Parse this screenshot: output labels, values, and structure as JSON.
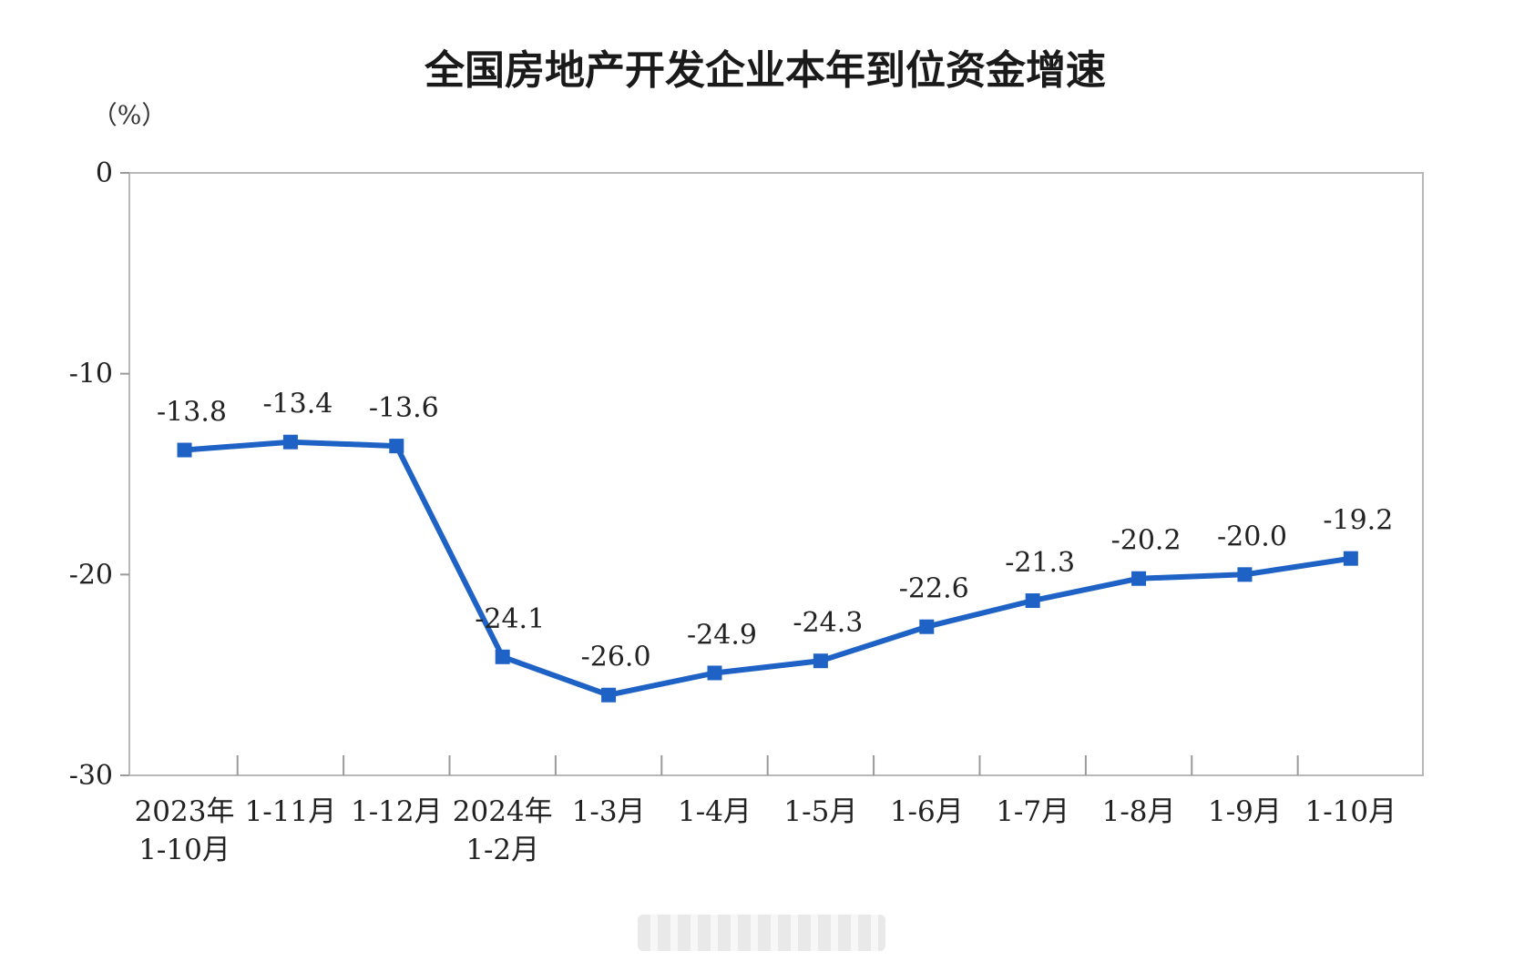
{
  "chart_data": {
    "type": "line",
    "title": "全国房地产开发企业本年到位资金增速",
    "unit": "（%）",
    "ylim": [
      -30,
      0
    ],
    "yticks": [
      0,
      -10,
      -20,
      -30
    ],
    "grid": false,
    "categories": [
      [
        "2023年",
        "1-10月"
      ],
      [
        "1-11月"
      ],
      [
        "1-12月"
      ],
      [
        "2024年",
        "1-2月"
      ],
      [
        "1-3月"
      ],
      [
        "1-4月"
      ],
      [
        "1-5月"
      ],
      [
        "1-6月"
      ],
      [
        "1-7月"
      ],
      [
        "1-8月"
      ],
      [
        "1-9月"
      ],
      [
        "1-10月"
      ]
    ],
    "series": [
      {
        "values": [
          -13.8,
          -13.4,
          -13.6,
          -24.1,
          -26.0,
          -24.9,
          -24.3,
          -22.6,
          -21.3,
          -20.2,
          -20.0,
          -19.2
        ],
        "labels": [
          "-13.8",
          "-13.4",
          "-13.6",
          "-24.1",
          "-26.0",
          "-24.9",
          "-24.3",
          "-22.6",
          "-21.3",
          "-20.2",
          "-20.0",
          "-19.2"
        ],
        "color": "#1f62c6"
      }
    ]
  }
}
